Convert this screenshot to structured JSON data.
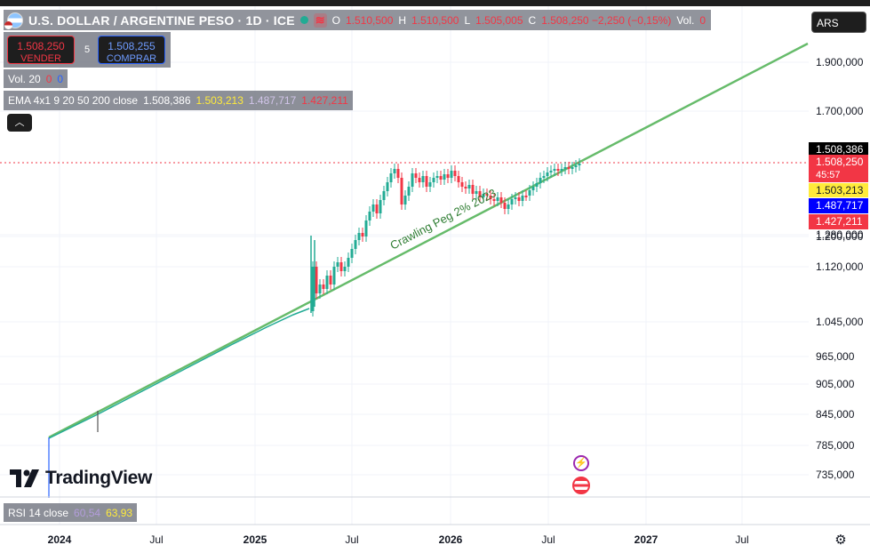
{
  "header": {
    "symbol": "U.S. DOLLAR / ARGENTINE PESO · 1D · ICE",
    "ohlc": [
      {
        "k": "O",
        "v": "1.510,500"
      },
      {
        "k": "H",
        "v": "1.510,500"
      },
      {
        "k": "L",
        "v": "1.505,005"
      },
      {
        "k": "C",
        "v": "1.508,250 −2,250 (−0,15%)"
      }
    ],
    "vol_label": "Vol.",
    "vol_value": "0"
  },
  "trade": {
    "sell_price": "1.508,250",
    "sell_label": "VENDER",
    "spread": "5",
    "buy_price": "1.508,255",
    "buy_label": "COMPRAR"
  },
  "volume_indicator": {
    "label": "Vol. 20",
    "v1": "0",
    "v2": "0"
  },
  "ema_indicator": {
    "label": "EMA 4x1 9 20 50 200 close",
    "values": [
      "1.508,386",
      "1.503,213",
      "1.487,717",
      "1.427,211"
    ],
    "colors": [
      "#ffffff",
      "#ffeb3b",
      "#b39ddb",
      "#f23645"
    ]
  },
  "rsi_indicator": {
    "label": "RSI 14 close",
    "v1": "60,54",
    "v2": "63,93"
  },
  "currency_button": "ARS",
  "price_axis": {
    "ticks": [
      "1.900,000",
      "1.700,000",
      "1.280,000",
      "1.200,000",
      "1.120,000",
      "1.045,000",
      "965,000",
      "905,000",
      "845,000",
      "785,000",
      "735,000"
    ],
    "labels": [
      {
        "text": "1.508,386",
        "bg": "#000000",
        "fg": "#ffffff"
      },
      {
        "text": "1.508,250",
        "sub": "45:57",
        "bg": "#f23645",
        "fg": "#ffffff"
      },
      {
        "text": "1.503,213",
        "bg": "#ffeb3b",
        "fg": "#131722"
      },
      {
        "text": "1.487,717",
        "bg": "#0000ff",
        "fg": "#ffffff"
      },
      {
        "text": "1.427,211",
        "bg": "#f23645",
        "fg": "#ffffff"
      }
    ]
  },
  "time_axis": [
    "2024",
    "Jul",
    "2025",
    "Jul",
    "2026",
    "Jul",
    "2027",
    "Jul"
  ],
  "annotation": "Crawling Peg 2% 2023",
  "logo_text": "TradingView",
  "colors": {
    "up": "#22ab94",
    "down": "#f23645",
    "trendline": "#66bb6a",
    "price_line": "#f23645"
  },
  "icons": [
    "lightning-icon",
    "us-flag-event-icon",
    "chevron-up-icon",
    "gear-icon",
    "tradingview-logo-icon"
  ]
}
